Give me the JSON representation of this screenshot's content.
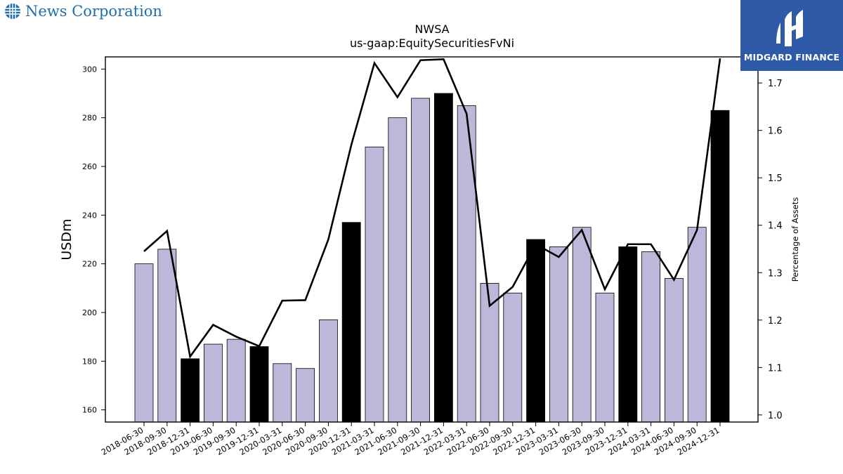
{
  "header": {
    "company": "News Corporation",
    "ticker": "NWSA",
    "metric": "us-gaap:EquitySecuritiesFvNi",
    "brand": "MIDGARD FINANCE"
  },
  "colors": {
    "bar_default": "#bcb8d9",
    "bar_highlight": "#000000",
    "line": "#000000",
    "brand_bg": "#2e5aa8",
    "company_text": "#1f6fa6"
  },
  "icons": {
    "company_logo": "globe-icon",
    "brand_logo": "midgard-logo-icon"
  },
  "chart_data": {
    "type": "bar",
    "title": "NWSA",
    "subtitle": "us-gaap:EquitySecuritiesFvNi",
    "xlabel": "",
    "ylabel": "USDm",
    "y2label": "Percentage of Assets",
    "ylim": [
      155,
      305
    ],
    "y2lim": [
      0.985,
      1.755
    ],
    "yticks": [
      160,
      180,
      200,
      220,
      240,
      260,
      280,
      300
    ],
    "y2ticks": [
      1.0,
      1.1,
      1.2,
      1.3,
      1.4,
      1.5,
      1.6,
      1.7
    ],
    "grid": false,
    "categories": [
      "2018-06-30",
      "2018-09-30",
      "2018-12-31",
      "2019-06-30",
      "2019-09-30",
      "2019-12-31",
      "2020-03-31",
      "2020-06-30",
      "2020-09-30",
      "2020-12-31",
      "2021-03-31",
      "2021-06-30",
      "2021-09-30",
      "2021-12-31",
      "2022-03-31",
      "2022-06-30",
      "2022-09-30",
      "2022-12-31",
      "2023-03-31",
      "2023-06-30",
      "2023-09-30",
      "2023-12-31",
      "2024-03-31",
      "2024-06-30",
      "2024-09-30",
      "2024-12-31"
    ],
    "series": [
      {
        "type": "bar",
        "values": [
          220,
          226,
          181,
          187,
          189,
          186,
          179,
          177,
          197,
          237,
          268,
          280,
          288,
          290,
          285,
          212,
          208,
          230,
          227,
          235,
          208,
          227,
          225,
          214,
          235,
          283
        ],
        "highlighted": [
          false,
          false,
          true,
          false,
          false,
          true,
          false,
          false,
          false,
          true,
          false,
          false,
          false,
          true,
          false,
          false,
          false,
          true,
          false,
          false,
          false,
          true,
          false,
          false,
          false,
          true
        ]
      },
      {
        "type": "line",
        "axis": "right",
        "values": [
          1.345,
          1.388,
          1.123,
          1.19,
          1.165,
          1.145,
          1.241,
          1.242,
          1.37,
          1.57,
          1.742,
          1.67,
          1.748,
          1.75,
          1.635,
          1.23,
          1.27,
          1.36,
          1.333,
          1.39,
          1.265,
          1.36,
          1.36,
          1.285,
          1.39,
          1.752
        ]
      }
    ]
  }
}
